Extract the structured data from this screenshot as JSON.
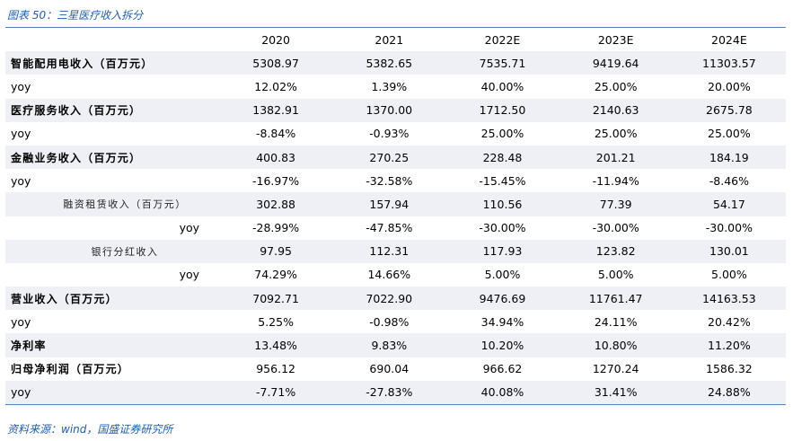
{
  "caption": "图表 50：三星医疗收入拆分",
  "header": [
    "",
    "2020",
    "2021",
    "2022E",
    "2023E",
    "2024E"
  ],
  "rows": [
    {
      "label": "智能配用电收入（百万元）",
      "kind": "bold",
      "shade": true,
      "values": [
        "5308.97",
        "5382.65",
        "7535.71",
        "9419.64",
        "11303.57"
      ]
    },
    {
      "label": "yoy",
      "kind": "yoy",
      "shade": false,
      "values": [
        "12.02%",
        "1.39%",
        "40.00%",
        "25.00%",
        "20.00%"
      ]
    },
    {
      "label": "医疗服务收入（百万元）",
      "kind": "bold",
      "shade": true,
      "values": [
        "1382.91",
        "1370.00",
        "1712.50",
        "2140.63",
        "2675.78"
      ]
    },
    {
      "label": "yoy",
      "kind": "yoy",
      "shade": false,
      "values": [
        "-8.84%",
        "-0.93%",
        "25.00%",
        "25.00%",
        "25.00%"
      ]
    },
    {
      "label": "金融业务收入（百万元）",
      "kind": "bold",
      "shade": true,
      "values": [
        "400.83",
        "270.25",
        "228.48",
        "201.21",
        "184.19"
      ]
    },
    {
      "label": "yoy",
      "kind": "yoy",
      "shade": false,
      "values": [
        "-16.97%",
        "-32.58%",
        "-15.45%",
        "-11.94%",
        "-8.46%"
      ]
    },
    {
      "label": "融资租赁收入（百万元）",
      "kind": "sub",
      "shade": true,
      "values": [
        "302.88",
        "157.94",
        "110.56",
        "77.39",
        "54.17"
      ]
    },
    {
      "label": "yoy",
      "kind": "subyoy",
      "shade": false,
      "values": [
        "-28.99%",
        "-47.85%",
        "-30.00%",
        "-30.00%",
        "-30.00%"
      ]
    },
    {
      "label": "银行分红收入",
      "kind": "sub",
      "shade": true,
      "values": [
        "97.95",
        "112.31",
        "117.93",
        "123.82",
        "130.01"
      ]
    },
    {
      "label": "yoy",
      "kind": "subyoy",
      "shade": false,
      "values": [
        "74.29%",
        "14.66%",
        "5.00%",
        "5.00%",
        "5.00%"
      ]
    },
    {
      "label": "营业收入（百万元）",
      "kind": "bold",
      "shade": true,
      "values": [
        "7092.71",
        "7022.90",
        "9476.69",
        "11761.47",
        "14163.53"
      ]
    },
    {
      "label": "yoy",
      "kind": "yoy",
      "shade": false,
      "values": [
        "5.25%",
        "-0.98%",
        "34.94%",
        "24.11%",
        "20.42%"
      ]
    },
    {
      "label": "净利率",
      "kind": "bold",
      "shade": true,
      "values": [
        "13.48%",
        "9.83%",
        "10.20%",
        "10.80%",
        "11.20%"
      ]
    },
    {
      "label": "归母净利润（百万元）",
      "kind": "bold",
      "shade": false,
      "values": [
        "956.12",
        "690.04",
        "966.62",
        "1270.24",
        "1586.32"
      ]
    },
    {
      "label": "yoy",
      "kind": "yoy",
      "shade": true,
      "values": [
        "-7.71%",
        "-27.83%",
        "40.08%",
        "31.41%",
        "24.88%"
      ]
    }
  ],
  "source": "资料来源：wind，国盛证券研究所"
}
